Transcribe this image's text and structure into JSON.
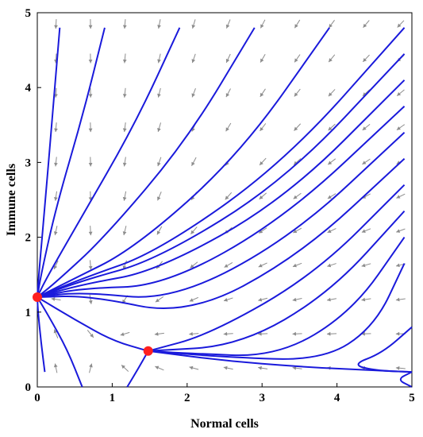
{
  "chart_data": {
    "type": "stream",
    "title": "",
    "xlabel": "Normal cells",
    "ylabel": "Immune cells",
    "xlim": [
      0,
      5
    ],
    "ylim": [
      0,
      5
    ],
    "xticks": [
      "0",
      "1",
      "2",
      "3",
      "4",
      "5"
    ],
    "yticks": [
      "0",
      "1",
      "2",
      "3",
      "4",
      "5"
    ],
    "grid": false,
    "trajectory_color": "#1a1adb",
    "arrow_color": "#8c8c8c",
    "equilibrium_color": "#ff2020",
    "equilibria": [
      {
        "x": 0.0,
        "y": 1.2
      },
      {
        "x": 1.48,
        "y": 0.48
      }
    ],
    "trajectories": [
      [
        [
          4.9,
          4.8
        ],
        [
          3.3,
          3.0
        ],
        [
          1.6,
          1.8
        ],
        [
          0.6,
          1.45
        ],
        [
          0.0,
          1.2
        ]
      ],
      [
        [
          4.9,
          4.45
        ],
        [
          3.3,
          2.75
        ],
        [
          1.6,
          1.7
        ],
        [
          0.6,
          1.42
        ],
        [
          0.0,
          1.2
        ]
      ],
      [
        [
          4.9,
          4.1
        ],
        [
          3.3,
          2.5
        ],
        [
          1.6,
          1.55
        ],
        [
          0.6,
          1.37
        ],
        [
          0.0,
          1.2
        ]
      ],
      [
        [
          4.9,
          3.75
        ],
        [
          3.3,
          2.25
        ],
        [
          1.7,
          1.35
        ],
        [
          0.6,
          1.32
        ],
        [
          0.0,
          1.2
        ]
      ],
      [
        [
          4.9,
          3.4
        ],
        [
          3.4,
          2.0
        ],
        [
          1.8,
          1.15
        ],
        [
          0.6,
          1.27
        ],
        [
          0.0,
          1.2
        ]
      ],
      [
        [
          4.9,
          3.05
        ],
        [
          3.5,
          1.75
        ],
        [
          2.0,
          0.95
        ],
        [
          0.7,
          1.22
        ],
        [
          0.0,
          1.2
        ]
      ],
      [
        [
          4.9,
          2.7
        ],
        [
          3.7,
          1.5
        ],
        [
          2.3,
          0.7
        ],
        [
          1.48,
          0.48
        ]
      ],
      [
        [
          4.9,
          2.35
        ],
        [
          3.9,
          1.25
        ],
        [
          2.7,
          0.55
        ],
        [
          1.48,
          0.48
        ]
      ],
      [
        [
          4.9,
          2.0
        ],
        [
          4.2,
          1.0
        ],
        [
          3.2,
          0.4
        ],
        [
          2.0,
          0.45
        ],
        [
          1.48,
          0.48
        ]
      ],
      [
        [
          4.9,
          1.65
        ],
        [
          4.5,
          0.8
        ],
        [
          3.8,
          0.35
        ],
        [
          2.5,
          0.4
        ],
        [
          1.48,
          0.48
        ]
      ],
      [
        [
          3.9,
          4.8
        ],
        [
          2.7,
          3.1
        ],
        [
          1.3,
          1.85
        ],
        [
          0.4,
          1.4
        ],
        [
          0.0,
          1.2
        ]
      ],
      [
        [
          2.9,
          4.8
        ],
        [
          2.0,
          3.3
        ],
        [
          0.9,
          2.0
        ],
        [
          0.25,
          1.4
        ],
        [
          0.0,
          1.2
        ]
      ],
      [
        [
          1.9,
          4.8
        ],
        [
          1.3,
          3.5
        ],
        [
          0.55,
          2.2
        ],
        [
          0.12,
          1.45
        ],
        [
          0.0,
          1.2
        ]
      ],
      [
        [
          0.9,
          4.8
        ],
        [
          0.6,
          3.6
        ],
        [
          0.25,
          2.4
        ],
        [
          0.05,
          1.5
        ],
        [
          0.0,
          1.2
        ]
      ],
      [
        [
          0.3,
          4.8
        ],
        [
          0.2,
          3.6
        ],
        [
          0.1,
          2.4
        ],
        [
          0.02,
          1.5
        ],
        [
          0.0,
          1.2
        ]
      ],
      [
        [
          0.1,
          0.2
        ],
        [
          0.05,
          0.6
        ],
        [
          0.01,
          1.0
        ],
        [
          0.0,
          1.2
        ]
      ],
      [
        [
          0.6,
          0.0
        ],
        [
          0.4,
          0.5
        ],
        [
          0.15,
          0.95
        ],
        [
          0.0,
          1.2
        ]
      ],
      [
        [
          0.0,
          1.2
        ],
        [
          0.5,
          0.9
        ],
        [
          1.0,
          0.62
        ],
        [
          1.48,
          0.48
        ]
      ],
      [
        [
          1.48,
          0.48
        ],
        [
          2.5,
          0.35
        ],
        [
          3.5,
          0.27
        ],
        [
          4.5,
          0.22
        ],
        [
          5.0,
          0.2
        ]
      ],
      [
        [
          1.2,
          0.0
        ],
        [
          1.35,
          0.25
        ],
        [
          1.48,
          0.48
        ]
      ],
      [
        [
          5.0,
          0.8
        ],
        [
          4.6,
          0.45
        ],
        [
          4.2,
          0.3
        ],
        [
          4.5,
          0.22
        ],
        [
          5.0,
          0.2
        ]
      ],
      [
        [
          5.0,
          0.0
        ],
        [
          4.8,
          0.1
        ],
        [
          5.0,
          0.2
        ]
      ]
    ]
  }
}
